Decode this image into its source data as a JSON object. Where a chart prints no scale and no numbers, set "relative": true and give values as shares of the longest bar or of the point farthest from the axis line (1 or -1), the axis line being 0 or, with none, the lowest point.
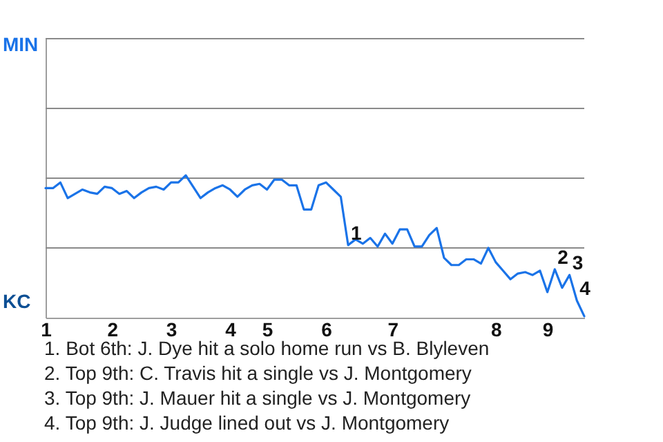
{
  "chart_data": {
    "type": "line",
    "relative": true,
    "categories": [
      "1",
      null,
      null,
      null,
      null,
      null,
      null,
      null,
      null,
      "2",
      null,
      null,
      null,
      null,
      null,
      null,
      null,
      "3",
      null,
      null,
      null,
      null,
      null,
      null,
      null,
      "4",
      null,
      null,
      null,
      null,
      "5",
      null,
      null,
      null,
      null,
      null,
      null,
      null,
      "6",
      null,
      null,
      null,
      null,
      null,
      null,
      null,
      null,
      "7",
      null,
      null,
      null,
      null,
      null,
      null,
      null,
      null,
      null,
      null,
      null,
      null,
      null,
      "8",
      null,
      null,
      null,
      null,
      null,
      null,
      "9",
      null,
      null,
      null,
      null,
      null
    ],
    "series": [
      {
        "color": "#1a73e8",
        "values": [
          0.91,
          0.91,
          0.95,
          0.84,
          0.87,
          0.9,
          0.88,
          0.87,
          0.92,
          0.91,
          0.87,
          0.89,
          0.84,
          0.88,
          0.91,
          0.92,
          0.9,
          0.95,
          0.95,
          1,
          0.92,
          0.84,
          0.88,
          0.91,
          0.93,
          0.9,
          0.85,
          0.9,
          0.93,
          0.94,
          0.9,
          0.97,
          0.97,
          0.93,
          0.93,
          0.76,
          0.76,
          0.93,
          0.95,
          0.9,
          0.85,
          0.51,
          0.55,
          0.52,
          0.56,
          0.5,
          0.59,
          0.52,
          0.62,
          0.62,
          0.5,
          0.5,
          0.58,
          0.63,
          0.42,
          0.37,
          0.37,
          0.41,
          0.41,
          0.38,
          0.49,
          0.39,
          0.33,
          0.27,
          0.31,
          0.32,
          0.3,
          0.33,
          0.18,
          0.34,
          0.21,
          0.3,
          0.12,
          0.01
        ]
      }
    ],
    "ref_lines": [
      {
        "axis": "y",
        "value": 0.49,
        "color": "#8a8a8a"
      },
      {
        "axis": "y",
        "value": 0.98,
        "color": "#8a8a8a"
      },
      {
        "axis": "y",
        "value": 1.47,
        "color": "#8a8a8a"
      },
      {
        "axis": "y",
        "value": 1.96,
        "color": "#8a8a8a"
      }
    ],
    "annotations": [
      {
        "text": "1",
        "y": 0.51
      },
      {
        "text": "2",
        "y": 0.34
      },
      {
        "text": "3",
        "y": 0.3
      },
      {
        "text": "4",
        "y": 0.12
      },
      "MIN",
      "KC",
      "1. Bot 6th: J. Dye hit a solo home run vs B. Blyleven",
      "2. Top 9th: C. Travis hit a single vs J. Montgomery",
      "3. Top 9th: J. Mauer hit a single vs J. Montgomery",
      "4. Top 9th: J. Judge lined out vs J. Montgomery"
    ]
  }
}
